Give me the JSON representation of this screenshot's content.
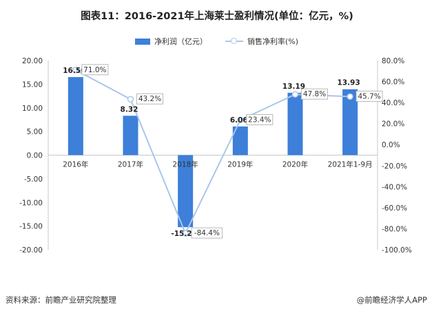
{
  "title": "图表11：2016-2021年上海莱士盈利情况(单位：亿元，%)",
  "legend": {
    "bar_label": "净利润（亿元）",
    "line_label": "销售净利率(%)"
  },
  "footer": {
    "source": "资料来源：前瞻产业研究院整理",
    "brand": "@前瞻经济学人APP"
  },
  "colors": {
    "bar": "#3d7fd9",
    "line": "#a9c6ea",
    "label_border": "#b8b8b8"
  },
  "chart_data": {
    "type": "bar",
    "title": "图表11：2016-2021年上海莱士盈利情况(单位：亿元，%)",
    "categories": [
      "2016年",
      "2017年",
      "2018年",
      "2019年",
      "2020年",
      "2021年1-9月"
    ],
    "series": [
      {
        "name": "净利润（亿元）",
        "type": "bar",
        "axis": "left",
        "values": [
          16.5,
          8.32,
          -15.23,
          6.06,
          13.19,
          13.93
        ],
        "labels": [
          "16.50",
          "8.32",
          "-15.23",
          "6.06",
          "13.19",
          "13.93"
        ]
      },
      {
        "name": "销售净利率(%)",
        "type": "line",
        "axis": "right",
        "values": [
          71.0,
          43.2,
          -84.4,
          23.4,
          47.8,
          45.7
        ],
        "labels": [
          "71.0%",
          "43.2%",
          "-84.4%",
          "23.4%",
          "47.8%",
          "45.7%"
        ]
      }
    ],
    "left_axis": {
      "ylim": [
        -20,
        20
      ],
      "ticks": [
        "20.00",
        "15.00",
        "10.00",
        "5.00",
        "0.00",
        "-5.00",
        "-10.00",
        "-15.00",
        "-20.00"
      ]
    },
    "right_axis": {
      "ylim": [
        -100,
        80
      ],
      "ticks": [
        "80.0%",
        "60.0%",
        "40.0%",
        "20.0%",
        "0.0%",
        "-20.0%",
        "-40.0%",
        "-60.0%",
        "-80.0%",
        "-100.0%"
      ]
    },
    "grid": false,
    "legend_position": "top"
  }
}
